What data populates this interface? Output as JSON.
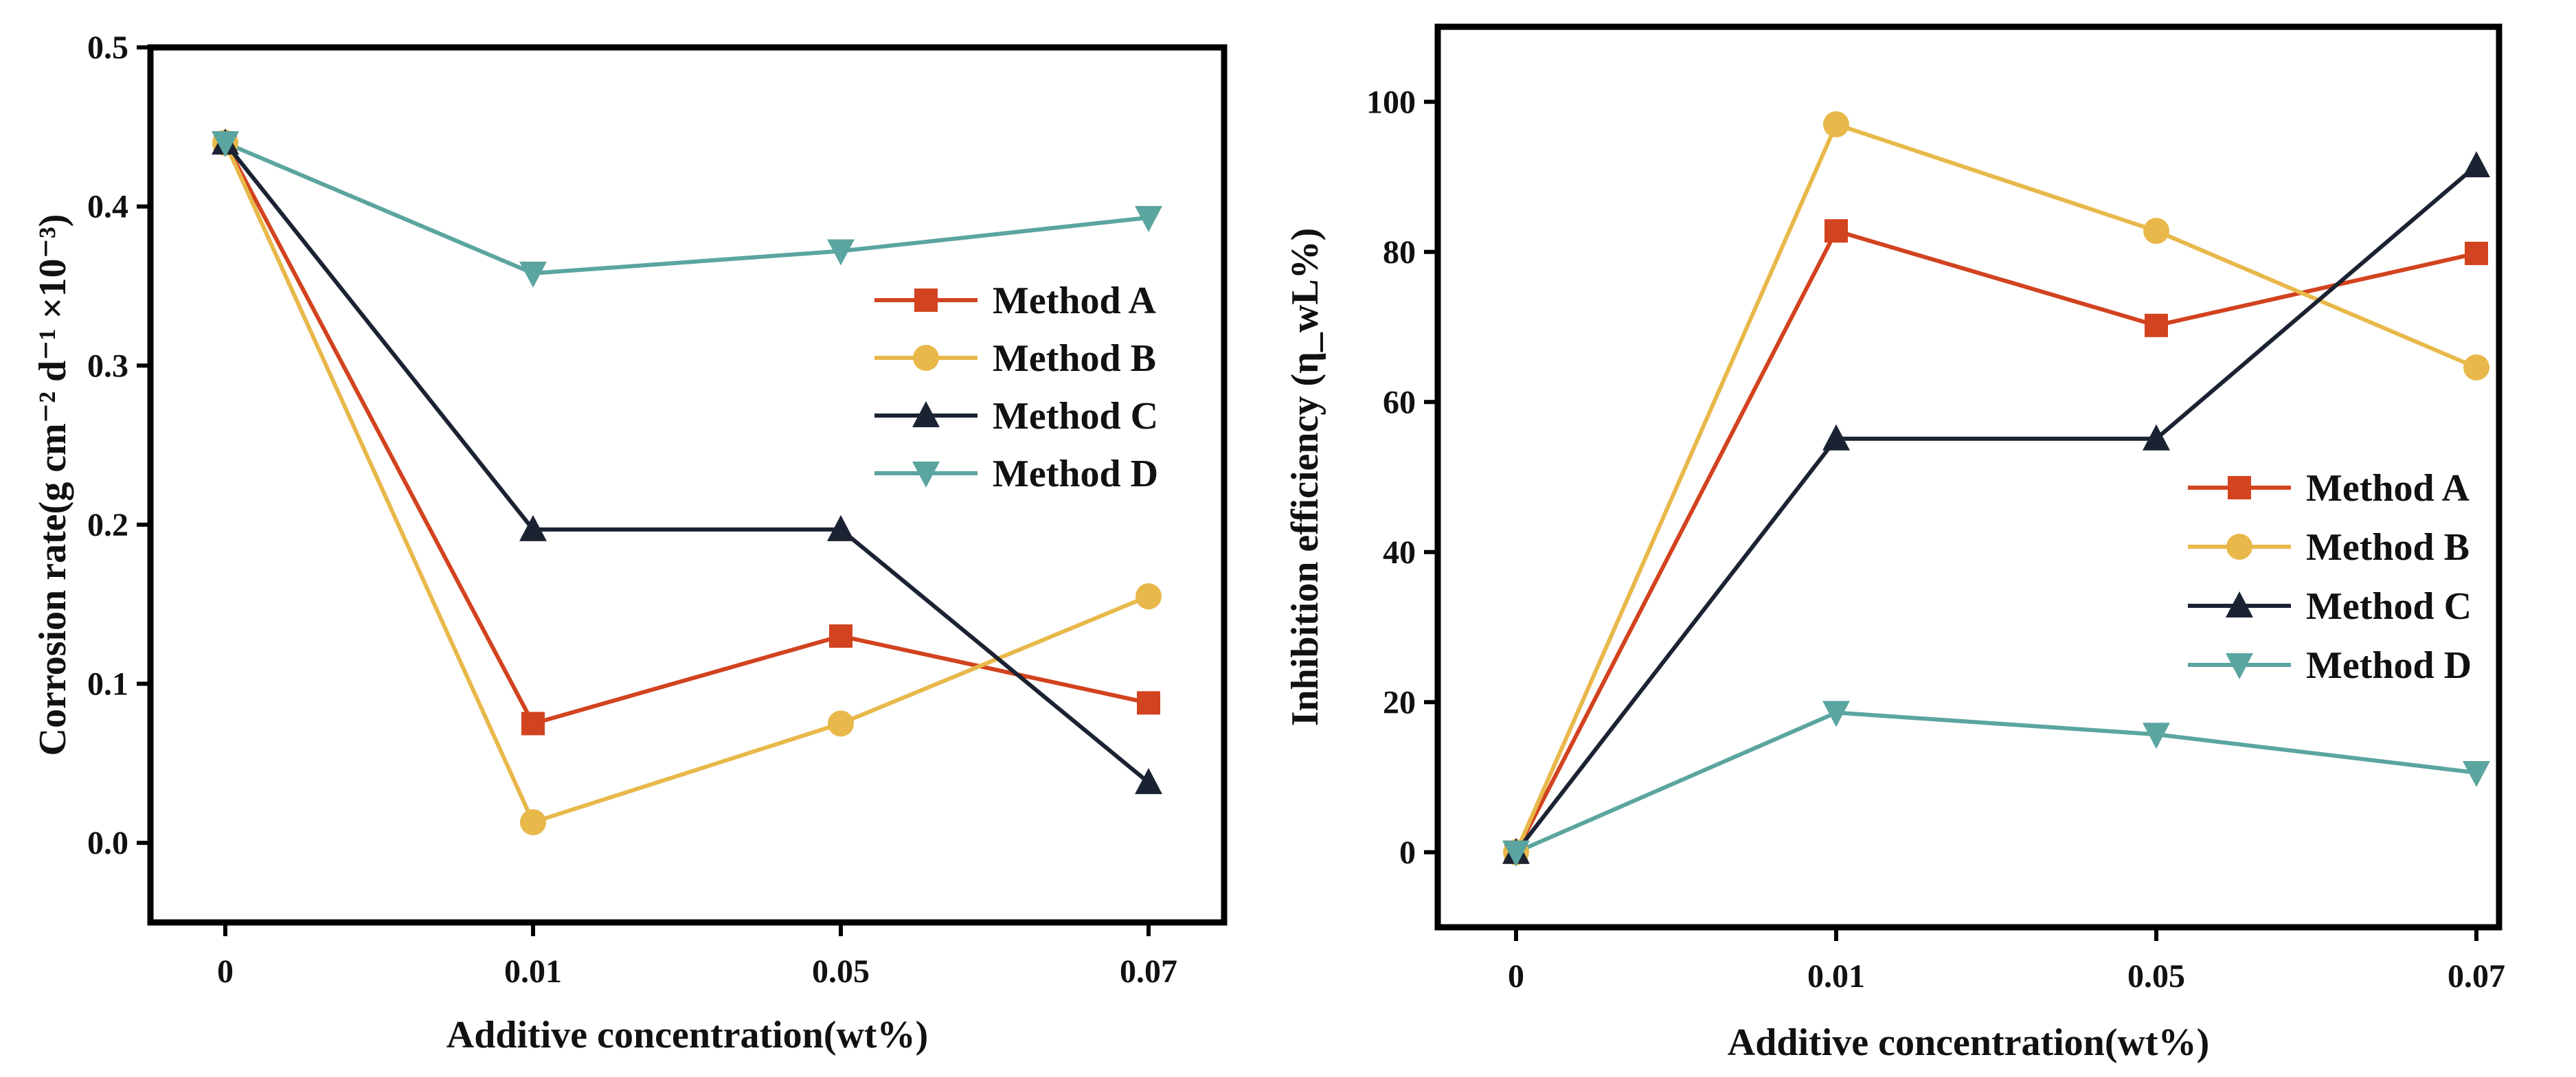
{
  "colors": {
    "method_a": "#D2431F",
    "method_b": "#E8B84A",
    "method_c": "#1B2333",
    "method_d": "#5BA5A0"
  },
  "chart_data": [
    {
      "type": "line",
      "categories": [
        "0",
        "0.01",
        "0.05",
        "0.07"
      ],
      "xlabel": "Additive concentration(wt%)",
      "ylabel": "Corrosion rate(g cm⁻² d⁻¹ ×10⁻³)",
      "ylim": [
        -0.05,
        0.5
      ],
      "yticks": [
        "0.0",
        "0.1",
        "0.2",
        "0.3",
        "0.4",
        "0.5"
      ],
      "legend_position": "upper-right",
      "grid": false,
      "series": [
        {
          "name": "Method A",
          "marker": "square",
          "values": [
            0.44,
            0.075,
            0.13,
            0.088
          ]
        },
        {
          "name": "Method B",
          "marker": "circle",
          "values": [
            0.44,
            0.013,
            0.075,
            0.155
          ]
        },
        {
          "name": "Method C",
          "marker": "triangle-up",
          "values": [
            0.44,
            0.197,
            0.197,
            0.038
          ]
        },
        {
          "name": "Method D",
          "marker": "triangle-down",
          "values": [
            0.44,
            0.358,
            0.372,
            0.393
          ]
        }
      ]
    },
    {
      "type": "line",
      "categories": [
        "0",
        "0.01",
        "0.05",
        "0.07"
      ],
      "xlabel": "Additive concentration(wt%)",
      "ylabel": "Inhibition efficiency (η_wL%)",
      "ylim": [
        -10,
        110
      ],
      "yticks": [
        "0",
        "20",
        "40",
        "60",
        "80",
        "100"
      ],
      "legend_position": "middle-right",
      "grid": false,
      "series": [
        {
          "name": "Method A",
          "marker": "square",
          "values": [
            0,
            82.8,
            70.2,
            79.8
          ]
        },
        {
          "name": "Method B",
          "marker": "circle",
          "values": [
            0,
            97.0,
            82.8,
            64.6
          ]
        },
        {
          "name": "Method C",
          "marker": "triangle-up",
          "values": [
            0,
            55.1,
            55.1,
            91.5
          ]
        },
        {
          "name": "Method D",
          "marker": "triangle-down",
          "values": [
            0,
            18.6,
            15.7,
            10.6
          ]
        }
      ]
    }
  ]
}
